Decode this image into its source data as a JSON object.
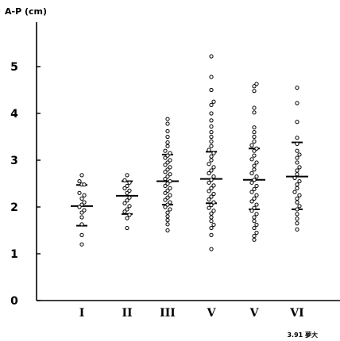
{
  "chart_data": {
    "type": "scatter",
    "title": "",
    "ylabel": "A-P (cm)",
    "xlabel": "",
    "ylim": [
      0,
      6
    ],
    "yticks": [
      "0",
      "1",
      "2",
      "3",
      "4",
      "5"
    ],
    "categories": [
      "I",
      "II",
      "III",
      "V",
      "V",
      "VI"
    ],
    "grid": false,
    "note": "3.91 夢大",
    "groups": [
      {
        "category": "I",
        "mean": 2.02,
        "lower": 1.6,
        "upper": 2.47,
        "values": [
          2.68,
          2.55,
          2.48,
          2.48,
          2.3,
          2.25,
          2.18,
          2.1,
          2.05,
          2.0,
          1.93,
          1.88,
          1.78,
          1.63,
          1.4,
          1.2
        ]
      },
      {
        "category": "II",
        "mean": 2.24,
        "lower": 1.85,
        "upper": 2.55,
        "values": [
          2.68,
          2.57,
          2.52,
          2.45,
          2.4,
          2.35,
          2.3,
          2.2,
          2.14,
          2.08,
          2.02,
          1.95,
          1.9,
          1.83,
          1.76,
          1.55
        ]
      },
      {
        "category": "III",
        "mean": 2.55,
        "lower": 2.05,
        "upper": 3.12,
        "values": [
          3.88,
          3.78,
          3.62,
          3.5,
          3.38,
          3.3,
          3.2,
          3.15,
          3.1,
          3.05,
          3.0,
          2.95,
          2.9,
          2.85,
          2.8,
          2.75,
          2.7,
          2.65,
          2.6,
          2.55,
          2.5,
          2.45,
          2.4,
          2.35,
          2.3,
          2.25,
          2.2,
          2.15,
          2.1,
          2.05,
          2.0,
          1.95,
          1.88,
          1.8,
          1.72,
          1.63,
          1.5
        ]
      },
      {
        "category": "V",
        "mean": 2.6,
        "lower": 2.08,
        "upper": 3.18,
        "values": [
          5.22,
          4.78,
          4.5,
          4.25,
          4.18,
          4.0,
          3.85,
          3.72,
          3.6,
          3.5,
          3.4,
          3.3,
          3.22,
          3.15,
          3.08,
          3.0,
          2.92,
          2.85,
          2.78,
          2.72,
          2.65,
          2.58,
          2.52,
          2.46,
          2.4,
          2.34,
          2.28,
          2.22,
          2.16,
          2.1,
          2.04,
          1.98,
          1.92,
          1.86,
          1.78,
          1.7,
          1.62,
          1.55,
          1.4,
          1.1
        ]
      },
      {
        "category": "V",
        "mean": 2.58,
        "lower": 1.95,
        "upper": 3.25,
        "values": [
          4.63,
          4.58,
          4.48,
          4.12,
          4.02,
          3.7,
          3.6,
          3.5,
          3.4,
          3.32,
          3.25,
          3.2,
          3.1,
          3.02,
          2.95,
          2.88,
          2.8,
          2.72,
          2.65,
          2.58,
          2.52,
          2.45,
          2.38,
          2.32,
          2.25,
          2.18,
          2.12,
          2.05,
          1.98,
          1.92,
          1.85,
          1.78,
          1.7,
          1.62,
          1.55,
          1.45,
          1.38,
          1.3
        ]
      },
      {
        "category": "VI",
        "mean": 2.65,
        "lower": 1.95,
        "upper": 3.38,
        "values": [
          4.55,
          4.22,
          3.82,
          3.48,
          3.35,
          3.2,
          3.12,
          3.05,
          2.95,
          2.85,
          2.78,
          2.7,
          2.62,
          2.55,
          2.48,
          2.4,
          2.32,
          2.25,
          2.18,
          2.1,
          2.02,
          1.95,
          1.85,
          1.75,
          1.65,
          1.52
        ]
      }
    ]
  }
}
